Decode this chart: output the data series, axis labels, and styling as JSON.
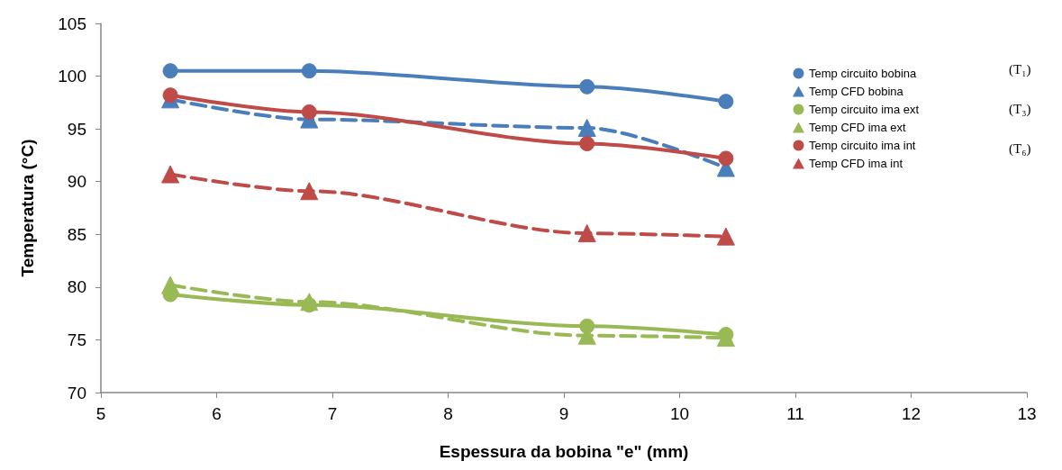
{
  "chart_data": {
    "type": "line",
    "xlabel": "Espessura da bobina \"e\" (mm)",
    "ylabel": "Temperatura (°C)",
    "x": [
      5.6,
      6.8,
      9.2,
      10.4
    ],
    "series": [
      {
        "name": "Temp circuito bobina",
        "color": "#4a7ebb",
        "values": [
          100.5,
          100.5,
          99.0,
          97.6
        ],
        "marker": "circle",
        "line_style": "solid"
      },
      {
        "name": "Temp CFD bobina",
        "color": "#4a7ebb",
        "values": [
          97.8,
          95.9,
          95.1,
          91.3
        ],
        "marker": "triangle",
        "line_style": "dashed"
      },
      {
        "name": "Temp circuito ima ext",
        "color": "#98b954",
        "values": [
          79.3,
          78.3,
          76.3,
          75.5
        ],
        "marker": "circle",
        "line_style": "solid"
      },
      {
        "name": "Temp CFD ima ext",
        "color": "#98b954",
        "values": [
          80.2,
          78.6,
          75.4,
          75.2
        ],
        "marker": "triangle",
        "line_style": "dashed"
      },
      {
        "name": "Temp circuito ima int",
        "color": "#be4b48",
        "values": [
          98.2,
          96.6,
          93.6,
          92.2
        ],
        "marker": "circle",
        "line_style": "solid"
      },
      {
        "name": "Temp CFD ima int",
        "color": "#be4b48",
        "values": [
          90.7,
          89.1,
          85.1,
          84.8
        ],
        "marker": "triangle",
        "line_style": "dashed"
      }
    ],
    "xlim": [
      5,
      13
    ],
    "xticks": [
      5,
      6,
      7,
      8,
      9,
      10,
      11,
      12,
      13
    ],
    "ylim": [
      70,
      105
    ],
    "yticks": [
      70,
      75,
      80,
      85,
      90,
      95,
      100,
      105
    ],
    "grid": false,
    "legend": "right",
    "annotations": [
      "(T₁)",
      "(T₃)",
      "(T₆)"
    ]
  }
}
